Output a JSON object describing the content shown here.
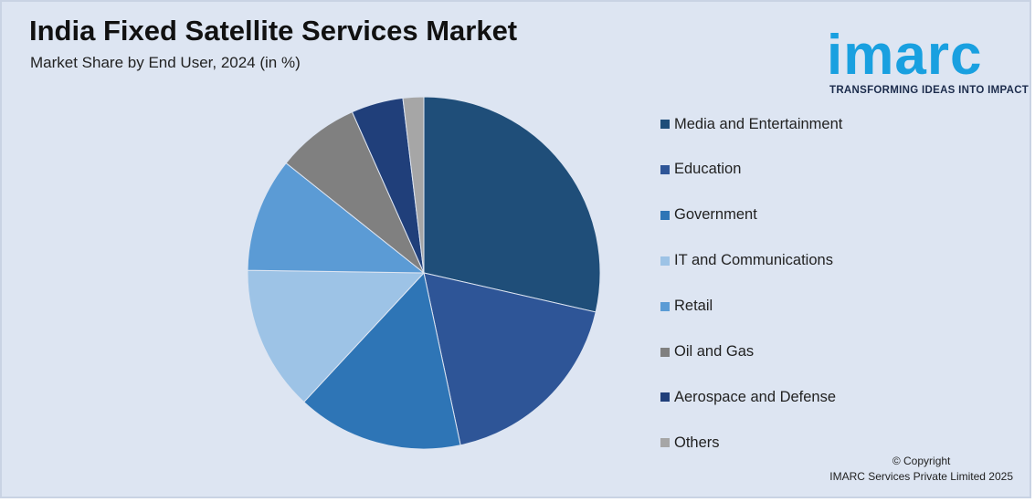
{
  "title": "India Fixed Satellite Services Market",
  "subtitle": "Market Share by End User, 2024 (in %)",
  "logo": {
    "word": "imarc",
    "tagline": "TRANSFORMING IDEAS INTO IMPACT",
    "color": "#19a0e0",
    "tagline_color": "#1c2c4c"
  },
  "copyright": {
    "line1": "© Copyright",
    "line2": "IMARC Services Private Limited 2025"
  },
  "chart_data": {
    "type": "pie",
    "title": "Market Share by End User, 2024 (in %)",
    "legend_placement": "right",
    "start_angle": "12 o'clock, clockwise",
    "slices": [
      {
        "label": "Media and Entertainment",
        "value": 30,
        "color": "#1f4e79"
      },
      {
        "label": "Education",
        "value": 19,
        "color": "#2e5597"
      },
      {
        "label": "Government",
        "value": 16,
        "color": "#2e75b6"
      },
      {
        "label": "IT and Communications",
        "value": 14,
        "color": "#9dc3e6"
      },
      {
        "label": "Retail",
        "value": 11,
        "color": "#5b9bd5"
      },
      {
        "label": "Oil and Gas",
        "value": 8,
        "color": "#808080"
      },
      {
        "label": "Aerospace and Defense",
        "value": 5,
        "color": "#203f7a"
      },
      {
        "label": "Others",
        "value": 2,
        "color": "#a6a6a6"
      }
    ]
  }
}
